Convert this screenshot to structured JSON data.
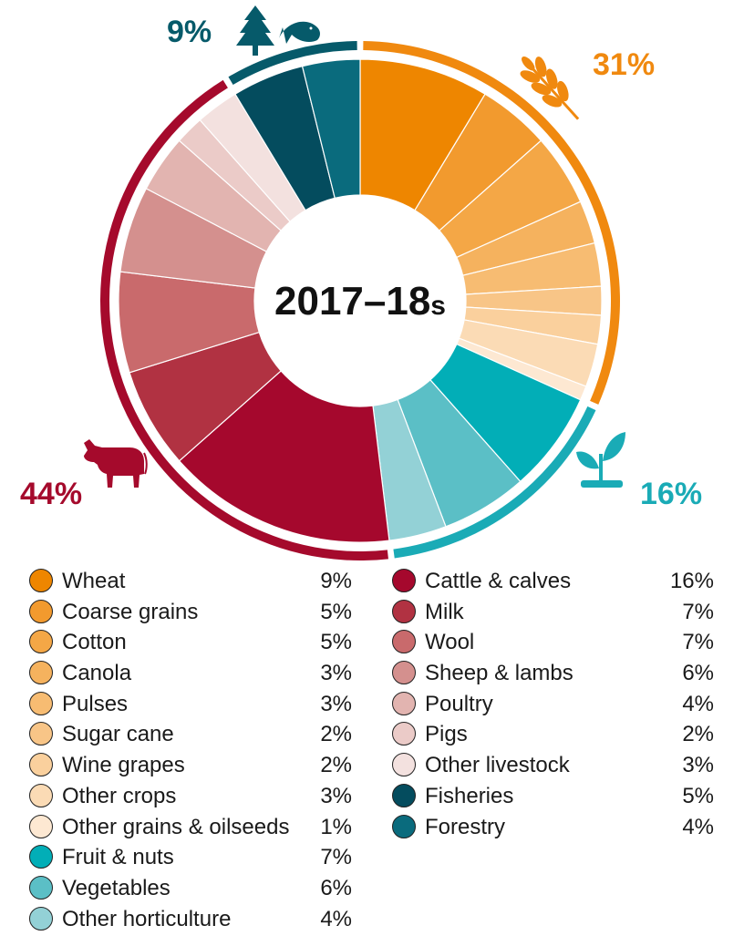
{
  "chart_data": {
    "type": "pie",
    "title": "2017–18s",
    "title_main": "2017–18",
    "title_suffix": "s",
    "groups": [
      {
        "name": "crops",
        "label": "31%",
        "value": 31,
        "color": "#f0890f",
        "icon": "wheat-icon"
      },
      {
        "name": "horticulture",
        "label": "16%",
        "value": 16,
        "color": "#1aabb6",
        "icon": "seedling-icon"
      },
      {
        "name": "livestock",
        "label": "44%",
        "value": 44,
        "color": "#a50a2c",
        "icon": "cattle-icon"
      },
      {
        "name": "forestry-fisheries",
        "label": "9%",
        "value": 9,
        "color": "#065a6a",
        "icon": "tree-and-fish-icon"
      }
    ],
    "slices": [
      {
        "label": "Wheat",
        "value": 9,
        "pct_label": "9%",
        "color": "#ee8600",
        "group": 0
      },
      {
        "label": "Coarse grains",
        "value": 5,
        "pct_label": "5%",
        "color": "#f29a2e",
        "group": 0
      },
      {
        "label": "Cotton",
        "value": 5,
        "pct_label": "5%",
        "color": "#f4a746",
        "group": 0
      },
      {
        "label": "Canola",
        "value": 3,
        "pct_label": "3%",
        "color": "#f5b25e",
        "group": 0
      },
      {
        "label": "Pulses",
        "value": 3,
        "pct_label": "3%",
        "color": "#f7bc72",
        "group": 0
      },
      {
        "label": "Sugar cane",
        "value": 2,
        "pct_label": "2%",
        "color": "#f8c587",
        "group": 0
      },
      {
        "label": "Wine grapes",
        "value": 2,
        "pct_label": "2%",
        "color": "#fad09d",
        "group": 0
      },
      {
        "label": "Other crops",
        "value": 3,
        "pct_label": "3%",
        "color": "#fbdbb5",
        "group": 0
      },
      {
        "label": "Other grains & oilseeds",
        "value": 1,
        "pct_label": "1%",
        "color": "#fde8d2",
        "group": 0
      },
      {
        "label": "Fruit & nuts",
        "value": 7,
        "pct_label": "7%",
        "color": "#02aeb7",
        "group": 1
      },
      {
        "label": "Vegetables",
        "value": 6,
        "pct_label": "6%",
        "color": "#5bbfc6",
        "group": 1
      },
      {
        "label": "Other horticulture",
        "value": 4,
        "pct_label": "4%",
        "color": "#93d1d6",
        "group": 1
      },
      {
        "label": "Cattle & calves",
        "value": 16,
        "pct_label": "16%",
        "color": "#a5082d",
        "group": 2
      },
      {
        "label": "Milk",
        "value": 7,
        "pct_label": "7%",
        "color": "#b13242",
        "group": 2
      },
      {
        "label": "Wool",
        "value": 7,
        "pct_label": "7%",
        "color": "#c96a6c",
        "group": 2
      },
      {
        "label": "Sheep & lambs",
        "value": 6,
        "pct_label": "6%",
        "color": "#d4908e",
        "group": 2
      },
      {
        "label": "Poultry",
        "value": 4,
        "pct_label": "4%",
        "color": "#e2b4b0",
        "group": 2
      },
      {
        "label": "Pigs",
        "value": 2,
        "pct_label": "2%",
        "color": "#ebcbc8",
        "group": 2
      },
      {
        "label": "Other livestock",
        "value": 3,
        "pct_label": "3%",
        "color": "#f3e1df",
        "group": 2
      },
      {
        "label": "Fisheries",
        "value": 5,
        "pct_label": "5%",
        "color": "#044c5e",
        "group": 3
      },
      {
        "label": "Forestry",
        "value": 4,
        "pct_label": "4%",
        "color": "#0a6b7d",
        "group": 3
      }
    ],
    "legend_columns": [
      [
        0,
        1,
        2,
        3,
        4,
        5,
        6,
        7,
        8,
        9,
        10,
        11
      ],
      [
        12,
        13,
        14,
        15,
        16,
        17,
        18,
        19,
        20
      ]
    ]
  }
}
